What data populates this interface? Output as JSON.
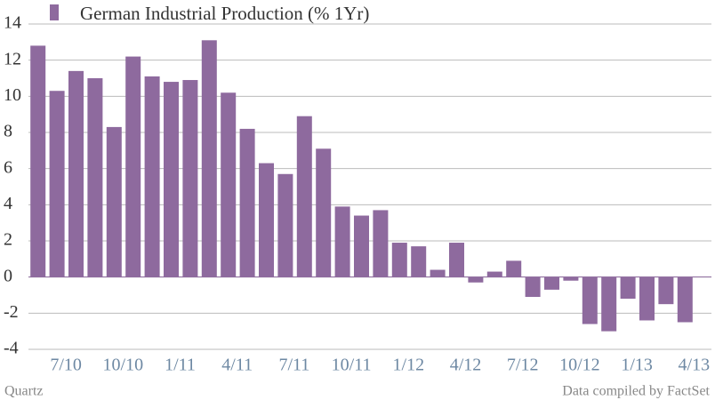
{
  "chart_data": {
    "type": "bar",
    "title": "German Industrial Production (% 1Yr)",
    "source_left": "Quartz",
    "source_right": "Data compiled by FactSet",
    "categories": [
      null,
      "7/10",
      null,
      null,
      "10/10",
      null,
      null,
      "1/11",
      null,
      null,
      "4/11",
      null,
      null,
      "7/11",
      null,
      null,
      "10/11",
      null,
      null,
      "1/12",
      null,
      null,
      "4/12",
      null,
      null,
      "7/12",
      null,
      null,
      "10/12",
      null,
      null,
      "1/13",
      null,
      null,
      "4/13"
    ],
    "values": [
      12.8,
      10.3,
      11.4,
      11.0,
      8.3,
      12.2,
      11.1,
      10.8,
      10.9,
      13.1,
      10.2,
      8.2,
      6.3,
      5.7,
      8.9,
      7.1,
      3.9,
      3.4,
      3.7,
      1.9,
      1.7,
      0.4,
      1.9,
      -0.3,
      0.3,
      0.9,
      -1.1,
      -0.7,
      -0.2,
      -2.6,
      -3.0,
      -1.2,
      -2.4,
      -1.5,
      -2.5
    ],
    "color": "#8e6a9e",
    "ylim": [
      -4,
      14
    ],
    "yticks": [
      -4,
      -2,
      0,
      2,
      4,
      6,
      8,
      10,
      12,
      14
    ],
    "grid": true
  }
}
